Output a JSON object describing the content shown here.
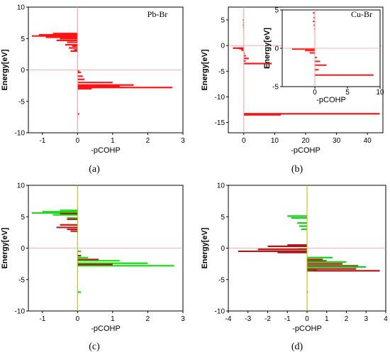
{
  "chart_data": [
    {
      "panel": "(a)",
      "type": "bar",
      "xlabel": "-pCOHP",
      "ylabel": "Energy[eV]",
      "xlim": [
        -1.4,
        3
      ],
      "ylim": [
        -10,
        10
      ],
      "xticks": [
        -1,
        0,
        1,
        2,
        3
      ],
      "yticks": [
        -10,
        -5,
        0,
        5,
        10
      ],
      "annotation": "Pb-Br",
      "series": [
        {
          "name": "Pb-Br",
          "color": "#ff0000",
          "points": [
            [
              -1.3,
              5.4
            ],
            [
              -1.1,
              5.6
            ],
            [
              -0.9,
              5.2
            ],
            [
              -0.7,
              5.8
            ],
            [
              -0.5,
              5.0
            ],
            [
              -0.6,
              4.7
            ],
            [
              -0.3,
              4.4
            ],
            [
              -0.35,
              4.0
            ],
            [
              -0.15,
              3.8
            ],
            [
              -0.25,
              3.5
            ],
            [
              -0.1,
              3.2
            ],
            [
              -0.2,
              3.0
            ],
            [
              0.05,
              -0.2
            ],
            [
              0.1,
              -0.4
            ],
            [
              0.15,
              -1.0
            ],
            [
              0.2,
              -1.5
            ],
            [
              1.0,
              -2.0
            ],
            [
              1.6,
              -2.4
            ],
            [
              2.7,
              -2.8
            ],
            [
              1.2,
              -2.6
            ],
            [
              0.4,
              -3.0
            ],
            [
              0.05,
              -7.0
            ]
          ]
        }
      ]
    },
    {
      "panel": "(b)",
      "type": "bar",
      "xlabel": "-pCOHP",
      "ylabel": "Energy[eV]",
      "xlim": [
        -5,
        45
      ],
      "ylim": [
        -17,
        7.5
      ],
      "xticks": [
        0,
        10,
        20,
        30,
        40
      ],
      "yticks": [
        -15,
        -10,
        -5,
        0,
        5
      ],
      "annotation": "Cu-Br",
      "series": [
        {
          "name": "Cu-Br",
          "color": "#ff0000",
          "points": [
            [
              -0.3,
              5.0
            ],
            [
              -0.2,
              4.5
            ],
            [
              -0.3,
              4.0
            ],
            [
              -0.2,
              3.5
            ],
            [
              -0.1,
              3.0
            ],
            [
              -3.5,
              -0.5
            ],
            [
              -1.5,
              -0.6
            ],
            [
              -0.8,
              -0.9
            ],
            [
              0.3,
              -1.5
            ],
            [
              0.7,
              -2.0
            ],
            [
              1.6,
              -2.5
            ],
            [
              0.6,
              -3.0
            ],
            [
              9.0,
              -3.5
            ],
            [
              44,
              -13.3
            ],
            [
              12,
              -13.5
            ]
          ]
        }
      ],
      "inset": {
        "xlabel": "-pCOHP",
        "ylabel": "Energy[eV]",
        "xlim": [
          -5,
          10
        ],
        "ylim": [
          -5,
          5
        ],
        "xticks": [
          0,
          5,
          10
        ],
        "yticks": [
          -5,
          0,
          5
        ],
        "color": "#ff0000",
        "points": [
          [
            -0.3,
            4.6
          ],
          [
            -0.2,
            4.0
          ],
          [
            -0.3,
            3.5
          ],
          [
            -0.2,
            3.0
          ],
          [
            -0.1,
            2.5
          ],
          [
            -3.5,
            -0.1
          ],
          [
            -1.5,
            -0.3
          ],
          [
            -0.8,
            -0.6
          ],
          [
            0.3,
            -1.2
          ],
          [
            0.8,
            -1.7
          ],
          [
            1.8,
            -2.2
          ],
          [
            0.6,
            -2.8
          ],
          [
            9.0,
            -3.5
          ]
        ]
      }
    },
    {
      "panel": "(c)",
      "type": "bar",
      "xlabel": "-pCOHP",
      "ylabel": "Energy[eV]",
      "xlim": [
        -1.4,
        3
      ],
      "ylim": [
        -10,
        10
      ],
      "xticks": [
        -1,
        0,
        1,
        2,
        3
      ],
      "yticks": [
        -10,
        -5,
        0,
        5,
        10
      ],
      "series": [
        {
          "name": "",
          "color": "#00dd00",
          "points": [
            [
              -1.3,
              5.6
            ],
            [
              -1.0,
              5.8
            ],
            [
              -0.7,
              5.3
            ],
            [
              -0.5,
              6.0
            ],
            [
              -0.3,
              4.8
            ],
            [
              0.1,
              -0.5
            ],
            [
              0.3,
              -1.5
            ],
            [
              1.2,
              -2.0
            ],
            [
              2.0,
              -2.4
            ],
            [
              2.75,
              -2.8
            ],
            [
              1.0,
              -2.6
            ],
            [
              0.1,
              -7.0
            ]
          ]
        },
        {
          "name": "",
          "color": "#bb0000",
          "points": [
            [
              -0.5,
              5.5
            ],
            [
              -0.3,
              4.6
            ],
            [
              -0.5,
              3.7
            ],
            [
              -0.6,
              3.3
            ],
            [
              -0.3,
              3.0
            ],
            [
              -0.2,
              2.7
            ],
            [
              0.1,
              -1.2
            ],
            [
              0.6,
              -1.8
            ],
            [
              1.0,
              -2.6
            ]
          ]
        }
      ]
    },
    {
      "panel": "(d)",
      "type": "bar",
      "xlabel": "-pCOHP",
      "ylabel": "Energy[eV]",
      "xlim": [
        -4,
        4
      ],
      "ylim": [
        -10,
        10
      ],
      "xticks": [
        -4,
        -3,
        -2,
        -1,
        0,
        1,
        2,
        3,
        4
      ],
      "yticks": [
        -10,
        -5,
        0,
        5,
        10
      ],
      "series": [
        {
          "name": "",
          "color": "#00cc00",
          "points": [
            [
              -1.0,
              5.1
            ],
            [
              -0.8,
              4.8
            ],
            [
              -0.5,
              4.0
            ],
            [
              -0.4,
              3.5
            ],
            [
              -0.3,
              3.0
            ],
            [
              1.3,
              -1.5
            ],
            [
              2.0,
              -2.2
            ],
            [
              3.0,
              -3.0
            ],
            [
              0.5,
              -3.5
            ],
            [
              0.05,
              -7.0
            ]
          ]
        },
        {
          "name": "",
          "color": "#aa0000",
          "points": [
            [
              -1.0,
              0.5
            ],
            [
              -2.0,
              0.3
            ],
            [
              -3.5,
              -0.5
            ],
            [
              -2.5,
              -0.2
            ],
            [
              -1.5,
              -0.7
            ],
            [
              0.8,
              -1.8
            ],
            [
              1.8,
              -2.5
            ],
            [
              3.7,
              -3.6
            ],
            [
              2.5,
              -3.3
            ]
          ]
        },
        {
          "name": "",
          "color": "#6b5a00",
          "points": [
            [
              -0.5,
              -0.1
            ],
            [
              1.0,
              -2.0
            ],
            [
              2.6,
              -2.8
            ],
            [
              0.3,
              -3.6
            ]
          ]
        }
      ]
    }
  ]
}
